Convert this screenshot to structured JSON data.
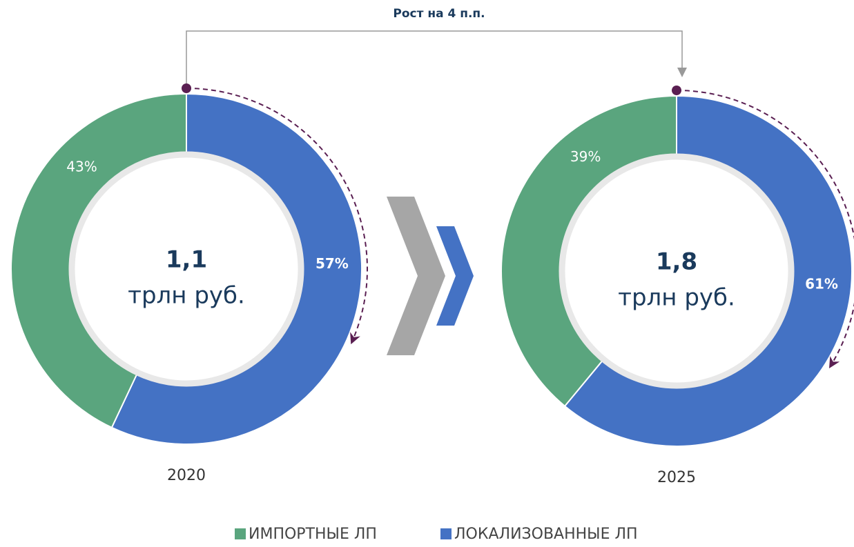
{
  "chart_data": {
    "type": "donut",
    "annotation": "Рост на 4 п.п.",
    "categories": [
      "ИМПОРТНЫЕ ЛП",
      "ЛОКАЛИЗОВАННЫЕ ЛП"
    ],
    "colors": [
      "#5aa57e",
      "#4472c4"
    ],
    "series": [
      {
        "name": "2020",
        "values": [
          43,
          57
        ],
        "value_labels": [
          "43%",
          "57%"
        ],
        "center_value": "1,1",
        "center_unit": "трлн руб."
      },
      {
        "name": "2025",
        "values": [
          39,
          61
        ],
        "value_labels": [
          "39%",
          "61%"
        ],
        "center_value": "1,8",
        "center_unit": "трлн руб."
      }
    ]
  }
}
